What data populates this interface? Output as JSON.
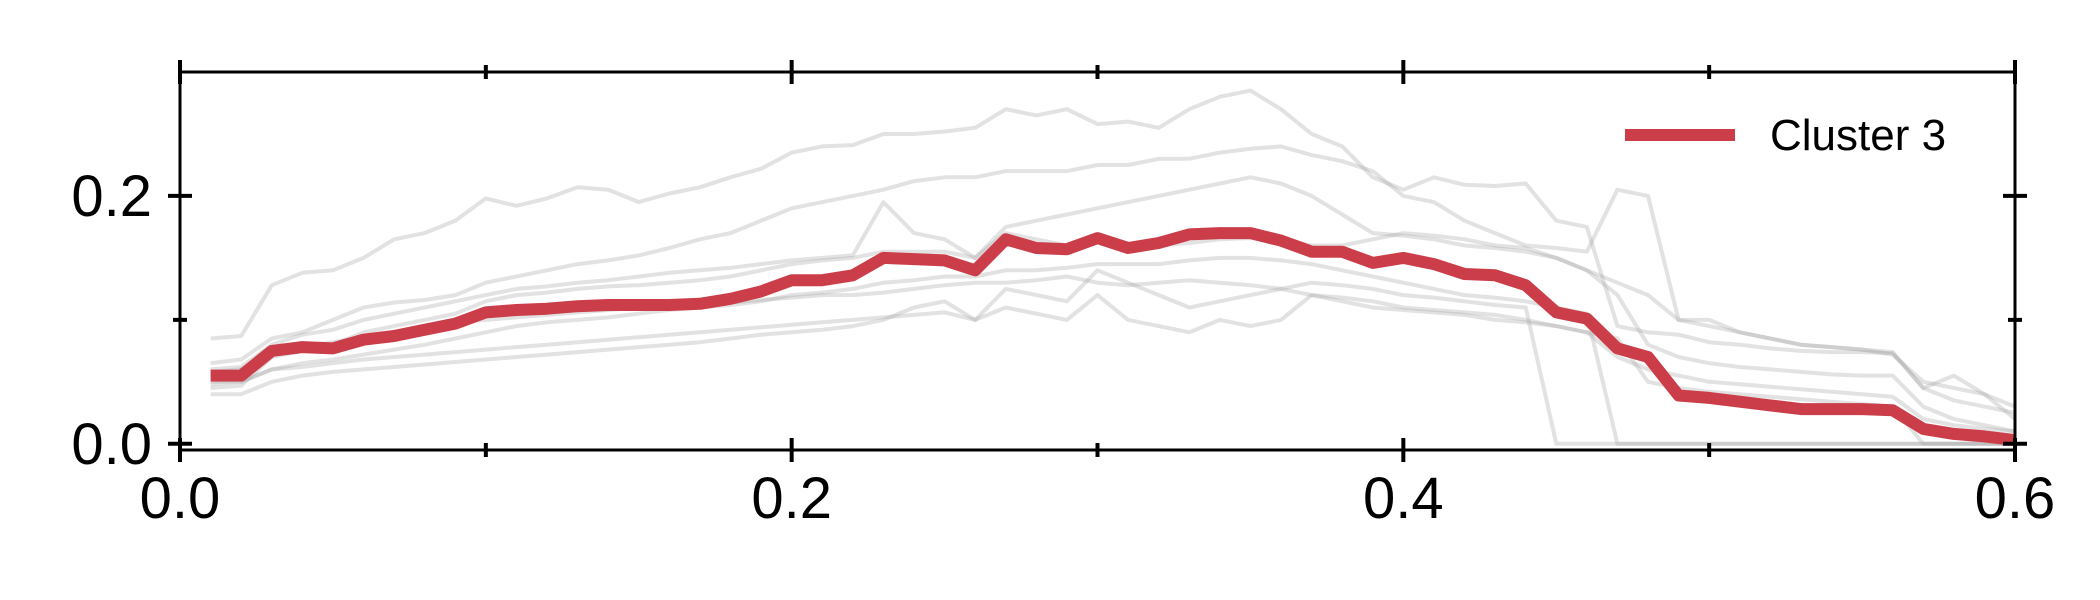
{
  "chart_data": {
    "type": "line",
    "title": "",
    "xlabel": "",
    "ylabel": "",
    "xlim": [
      0.0,
      0.6
    ],
    "ylim": [
      -0.005,
      0.3
    ],
    "xticks": [
      0.0,
      0.2,
      0.4,
      0.6
    ],
    "xtick_labels": [
      "0.0",
      "0.2",
      "0.4",
      "0.6"
    ],
    "yticks": [
      0.0,
      0.2
    ],
    "ytick_labels": [
      "0.0",
      "0.2"
    ],
    "minor_xticks": [
      0.1,
      0.3,
      0.5
    ],
    "minor_yticks": [
      0.1
    ],
    "grid": false,
    "legend_position": "top-right",
    "highlight_color": "#cc3d4a",
    "background_color": "#9e9e9e",
    "series": [
      {
        "name": "Cluster 3",
        "highlight": true,
        "x": [
          0.01,
          0.02,
          0.03,
          0.04,
          0.05,
          0.06,
          0.07,
          0.08,
          0.09,
          0.1,
          0.11,
          0.12,
          0.13,
          0.14,
          0.15,
          0.16,
          0.17,
          0.18,
          0.19,
          0.2,
          0.21,
          0.22,
          0.23,
          0.24,
          0.25,
          0.26,
          0.27,
          0.28,
          0.29,
          0.3,
          0.31,
          0.32,
          0.33,
          0.34,
          0.35,
          0.36,
          0.37,
          0.38,
          0.39,
          0.4,
          0.41,
          0.42,
          0.43,
          0.44,
          0.45,
          0.46,
          0.47,
          0.48,
          0.49,
          0.5,
          0.51,
          0.52,
          0.53,
          0.54,
          0.55,
          0.56,
          0.57,
          0.58,
          0.59,
          0.6
        ],
        "y": [
          0.055,
          0.055,
          0.075,
          0.078,
          0.077,
          0.084,
          0.087,
          0.092,
          0.097,
          0.106,
          0.108,
          0.109,
          0.111,
          0.112,
          0.112,
          0.112,
          0.113,
          0.117,
          0.123,
          0.132,
          0.132,
          0.136,
          0.15,
          0.149,
          0.148,
          0.14,
          0.165,
          0.158,
          0.157,
          0.166,
          0.158,
          0.162,
          0.169,
          0.17,
          0.17,
          0.164,
          0.155,
          0.155,
          0.146,
          0.15,
          0.145,
          0.137,
          0.136,
          0.128,
          0.106,
          0.101,
          0.077,
          0.07,
          0.039,
          0.037,
          0.034,
          0.031,
          0.028,
          0.028,
          0.028,
          0.027,
          0.012,
          0.008,
          0.006,
          0.003
        ]
      },
      {
        "x": [
          0.01,
          0.02,
          0.03,
          0.04,
          0.05,
          0.06,
          0.07,
          0.08,
          0.09,
          0.1,
          0.11,
          0.12,
          0.13,
          0.14,
          0.15,
          0.16,
          0.17,
          0.18,
          0.19,
          0.2,
          0.21,
          0.22,
          0.23,
          0.24,
          0.25,
          0.26,
          0.27,
          0.28,
          0.29,
          0.3,
          0.31,
          0.32,
          0.33,
          0.34,
          0.35,
          0.36,
          0.37,
          0.38,
          0.39,
          0.4,
          0.41,
          0.42,
          0.43,
          0.44,
          0.45,
          0.46,
          0.47,
          0.48,
          0.49,
          0.5,
          0.51,
          0.52,
          0.53,
          0.54,
          0.55,
          0.56,
          0.57,
          0.58,
          0.59,
          0.6
        ],
        "y": [
          0.085,
          0.087,
          0.128,
          0.138,
          0.14,
          0.15,
          0.165,
          0.17,
          0.18,
          0.198,
          0.192,
          0.198,
          0.207,
          0.205,
          0.195,
          0.202,
          0.207,
          0.215,
          0.222,
          0.235,
          0.24,
          0.241,
          0.25,
          0.25,
          0.252,
          0.255,
          0.27,
          0.265,
          0.27,
          0.258,
          0.26,
          0.255,
          0.27,
          0.28,
          0.285,
          0.27,
          0.25,
          0.24,
          0.215,
          0.205,
          0.215,
          0.209,
          0.208,
          0.21,
          0.18,
          0.175,
          0.095,
          0.09,
          0.088,
          0.082,
          0.08,
          0.077,
          0.075,
          0.074,
          0.074,
          0.073,
          0.045,
          0.055,
          0.04,
          0.02
        ]
      },
      {
        "x": [
          0.01,
          0.02,
          0.03,
          0.04,
          0.05,
          0.06,
          0.07,
          0.08,
          0.09,
          0.1,
          0.11,
          0.12,
          0.13,
          0.14,
          0.15,
          0.16,
          0.17,
          0.18,
          0.19,
          0.2,
          0.21,
          0.22,
          0.23,
          0.24,
          0.25,
          0.26,
          0.27,
          0.28,
          0.29,
          0.3,
          0.31,
          0.32,
          0.33,
          0.34,
          0.35,
          0.36,
          0.37,
          0.38,
          0.39,
          0.4,
          0.41,
          0.42,
          0.43,
          0.44,
          0.45,
          0.46,
          0.47,
          0.48,
          0.49,
          0.5,
          0.51,
          0.52,
          0.53,
          0.54,
          0.55,
          0.56,
          0.57,
          0.58,
          0.59,
          0.6
        ],
        "y": [
          0.065,
          0.068,
          0.085,
          0.09,
          0.1,
          0.11,
          0.114,
          0.116,
          0.12,
          0.13,
          0.135,
          0.14,
          0.145,
          0.148,
          0.152,
          0.158,
          0.165,
          0.17,
          0.18,
          0.19,
          0.195,
          0.2,
          0.205,
          0.212,
          0.215,
          0.215,
          0.22,
          0.22,
          0.22,
          0.225,
          0.225,
          0.23,
          0.23,
          0.235,
          0.238,
          0.24,
          0.233,
          0.228,
          0.22,
          0.2,
          0.195,
          0.18,
          0.17,
          0.16,
          0.158,
          0.155,
          0.205,
          0.2,
          0.1,
          0.1,
          0.09,
          0.085,
          0.08,
          0.078,
          0.076,
          0.074,
          0.045,
          0.035,
          0.03,
          0.025
        ]
      },
      {
        "x": [
          0.01,
          0.02,
          0.03,
          0.04,
          0.05,
          0.06,
          0.07,
          0.08,
          0.09,
          0.1,
          0.11,
          0.12,
          0.13,
          0.14,
          0.15,
          0.16,
          0.17,
          0.18,
          0.19,
          0.2,
          0.21,
          0.22,
          0.23,
          0.24,
          0.25,
          0.26,
          0.27,
          0.28,
          0.29,
          0.3,
          0.31,
          0.32,
          0.33,
          0.34,
          0.35,
          0.36,
          0.37,
          0.38,
          0.39,
          0.4,
          0.41,
          0.42,
          0.43,
          0.44,
          0.45,
          0.46,
          0.47,
          0.48,
          0.49,
          0.5,
          0.51,
          0.52,
          0.53,
          0.54,
          0.55,
          0.56,
          0.57,
          0.58,
          0.59,
          0.6
        ],
        "y": [
          0.06,
          0.062,
          0.08,
          0.088,
          0.092,
          0.1,
          0.105,
          0.11,
          0.115,
          0.12,
          0.125,
          0.127,
          0.13,
          0.132,
          0.135,
          0.138,
          0.14,
          0.142,
          0.145,
          0.148,
          0.15,
          0.152,
          0.195,
          0.17,
          0.165,
          0.15,
          0.175,
          0.18,
          0.185,
          0.19,
          0.195,
          0.2,
          0.205,
          0.21,
          0.215,
          0.21,
          0.2,
          0.185,
          0.17,
          0.168,
          0.165,
          0.16,
          0.158,
          0.155,
          0.15,
          0.14,
          0.13,
          0.12,
          0.1,
          0.095,
          0.09,
          0.085,
          0.08,
          0.078,
          0.076,
          0.072,
          0.05,
          0.045,
          0.04,
          0.03
        ]
      },
      {
        "x": [
          0.01,
          0.02,
          0.03,
          0.04,
          0.05,
          0.06,
          0.07,
          0.08,
          0.09,
          0.1,
          0.11,
          0.12,
          0.13,
          0.14,
          0.15,
          0.16,
          0.17,
          0.18,
          0.19,
          0.2,
          0.21,
          0.22,
          0.23,
          0.24,
          0.25,
          0.26,
          0.27,
          0.28,
          0.29,
          0.3,
          0.31,
          0.32,
          0.33,
          0.34,
          0.35,
          0.36,
          0.37,
          0.38,
          0.39,
          0.4,
          0.41,
          0.42,
          0.43,
          0.44,
          0.45,
          0.46,
          0.47,
          0.48,
          0.49,
          0.5,
          0.51,
          0.52,
          0.53,
          0.54,
          0.55,
          0.56,
          0.57,
          0.58,
          0.59,
          0.6
        ],
        "y": [
          0.045,
          0.047,
          0.07,
          0.075,
          0.08,
          0.09,
          0.095,
          0.1,
          0.105,
          0.115,
          0.12,
          0.122,
          0.125,
          0.127,
          0.128,
          0.13,
          0.132,
          0.135,
          0.14,
          0.145,
          0.148,
          0.15,
          0.155,
          0.155,
          0.155,
          0.15,
          0.17,
          0.165,
          0.16,
          0.165,
          0.16,
          0.16,
          0.162,
          0.165,
          0.166,
          0.165,
          0.16,
          0.16,
          0.165,
          0.17,
          0.168,
          0.165,
          0.16,
          0.158,
          0.15,
          0.14,
          0.12,
          0.08,
          0.07,
          0.065,
          0.062,
          0.06,
          0.058,
          0.056,
          0.055,
          0.055,
          0.03,
          0.02,
          0.015,
          0.01
        ]
      },
      {
        "x": [
          0.01,
          0.02,
          0.03,
          0.04,
          0.05,
          0.06,
          0.07,
          0.08,
          0.09,
          0.1,
          0.11,
          0.12,
          0.13,
          0.14,
          0.15,
          0.16,
          0.17,
          0.18,
          0.19,
          0.2,
          0.21,
          0.22,
          0.23,
          0.24,
          0.25,
          0.26,
          0.27,
          0.28,
          0.29,
          0.3,
          0.31,
          0.32,
          0.33,
          0.34,
          0.35,
          0.36,
          0.37,
          0.38,
          0.39,
          0.4,
          0.41,
          0.42,
          0.43,
          0.44,
          0.45,
          0.46,
          0.47,
          0.48,
          0.49,
          0.5,
          0.51,
          0.52,
          0.53,
          0.54,
          0.55,
          0.56,
          0.57,
          0.58,
          0.59,
          0.6
        ],
        "y": [
          0.05,
          0.05,
          0.06,
          0.065,
          0.068,
          0.072,
          0.076,
          0.08,
          0.085,
          0.09,
          0.095,
          0.098,
          0.1,
          0.102,
          0.105,
          0.108,
          0.11,
          0.112,
          0.115,
          0.12,
          0.122,
          0.125,
          0.13,
          0.132,
          0.135,
          0.135,
          0.14,
          0.14,
          0.142,
          0.145,
          0.145,
          0.145,
          0.148,
          0.15,
          0.15,
          0.148,
          0.145,
          0.14,
          0.135,
          0.13,
          0.125,
          0.12,
          0.118,
          0.115,
          0.11,
          0.105,
          0.0,
          0.0,
          0.0,
          0.0,
          0.0,
          0.0,
          0.0,
          0.0,
          0.0,
          0.0,
          0.0,
          0.0,
          0.0,
          0.0
        ]
      },
      {
        "x": [
          0.01,
          0.02,
          0.03,
          0.04,
          0.05,
          0.06,
          0.07,
          0.08,
          0.09,
          0.1,
          0.11,
          0.12,
          0.13,
          0.14,
          0.15,
          0.16,
          0.17,
          0.18,
          0.19,
          0.2,
          0.21,
          0.22,
          0.23,
          0.24,
          0.25,
          0.26,
          0.27,
          0.28,
          0.29,
          0.3,
          0.31,
          0.32,
          0.33,
          0.34,
          0.35,
          0.36,
          0.37,
          0.38,
          0.39,
          0.4,
          0.41,
          0.42,
          0.43,
          0.44,
          0.45,
          0.46,
          0.47,
          0.48,
          0.49,
          0.5,
          0.51,
          0.52,
          0.53,
          0.54,
          0.55,
          0.56,
          0.57,
          0.58,
          0.59,
          0.6
        ],
        "y": [
          0.04,
          0.04,
          0.05,
          0.055,
          0.058,
          0.06,
          0.062,
          0.064,
          0.066,
          0.068,
          0.07,
          0.072,
          0.074,
          0.076,
          0.078,
          0.08,
          0.082,
          0.085,
          0.088,
          0.09,
          0.092,
          0.095,
          0.1,
          0.11,
          0.115,
          0.1,
          0.125,
          0.12,
          0.115,
          0.14,
          0.13,
          0.12,
          0.11,
          0.115,
          0.12,
          0.125,
          0.13,
          0.128,
          0.125,
          0.12,
          0.118,
          0.115,
          0.112,
          0.11,
          0.0,
          0.0,
          0.0,
          0.0,
          0.0,
          0.0,
          0.0,
          0.0,
          0.0,
          0.0,
          0.0,
          0.0,
          0.0,
          0.0,
          0.0,
          0.0
        ]
      },
      {
        "x": [
          0.01,
          0.02,
          0.03,
          0.04,
          0.05,
          0.06,
          0.07,
          0.08,
          0.09,
          0.1,
          0.11,
          0.12,
          0.13,
          0.14,
          0.15,
          0.16,
          0.17,
          0.18,
          0.19,
          0.2,
          0.21,
          0.22,
          0.23,
          0.24,
          0.25,
          0.26,
          0.27,
          0.28,
          0.29,
          0.3,
          0.31,
          0.32,
          0.33,
          0.34,
          0.35,
          0.36,
          0.37,
          0.38,
          0.39,
          0.4,
          0.41,
          0.42,
          0.43,
          0.44,
          0.45,
          0.46,
          0.47,
          0.48,
          0.49,
          0.5,
          0.51,
          0.52,
          0.53,
          0.54,
          0.55,
          0.56,
          0.57,
          0.58,
          0.59,
          0.6
        ],
        "y": [
          0.058,
          0.06,
          0.072,
          0.078,
          0.082,
          0.086,
          0.09,
          0.094,
          0.098,
          0.1,
          0.102,
          0.104,
          0.106,
          0.108,
          0.11,
          0.11,
          0.112,
          0.114,
          0.116,
          0.118,
          0.12,
          0.12,
          0.122,
          0.125,
          0.128,
          0.13,
          0.13,
          0.132,
          0.135,
          0.13,
          0.128,
          0.13,
          0.132,
          0.13,
          0.128,
          0.125,
          0.12,
          0.118,
          0.115,
          0.11,
          0.108,
          0.106,
          0.104,
          0.1,
          0.095,
          0.09,
          0.07,
          0.06,
          0.055,
          0.05,
          0.048,
          0.046,
          0.044,
          0.042,
          0.04,
          0.038,
          0.02,
          0.015,
          0.012,
          0.01
        ]
      },
      {
        "x": [
          0.01,
          0.02,
          0.03,
          0.04,
          0.05,
          0.06,
          0.07,
          0.08,
          0.09,
          0.1,
          0.11,
          0.12,
          0.13,
          0.14,
          0.15,
          0.16,
          0.17,
          0.18,
          0.19,
          0.2,
          0.21,
          0.22,
          0.23,
          0.24,
          0.25,
          0.26,
          0.27,
          0.28,
          0.29,
          0.3,
          0.31,
          0.32,
          0.33,
          0.34,
          0.35,
          0.36,
          0.37,
          0.38,
          0.39,
          0.4,
          0.41,
          0.42,
          0.43,
          0.44,
          0.45,
          0.46,
          0.47,
          0.48,
          0.49,
          0.5,
          0.51,
          0.52,
          0.53,
          0.54,
          0.55,
          0.56,
          0.57,
          0.58,
          0.59,
          0.6
        ],
        "y": [
          0.048,
          0.05,
          0.06,
          0.062,
          0.065,
          0.068,
          0.07,
          0.072,
          0.074,
          0.076,
          0.078,
          0.08,
          0.082,
          0.084,
          0.086,
          0.088,
          0.09,
          0.092,
          0.094,
          0.096,
          0.098,
          0.1,
          0.102,
          0.104,
          0.106,
          0.1,
          0.11,
          0.105,
          0.1,
          0.12,
          0.1,
          0.095,
          0.09,
          0.1,
          0.095,
          0.1,
          0.12,
          0.115,
          0.11,
          0.108,
          0.106,
          0.104,
          0.1,
          0.098,
          0.095,
          0.09,
          0.085,
          0.05,
          0.045,
          0.042,
          0.04,
          0.038,
          0.036,
          0.034,
          0.032,
          0.03,
          0.0,
          0.0,
          0.0,
          0.0
        ]
      }
    ]
  }
}
